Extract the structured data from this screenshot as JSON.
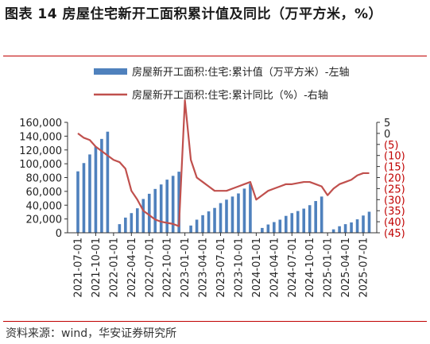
{
  "title": "图表 14 房屋住宅新开工面积累计值及同比（万平方米，%）",
  "source": "资料来源：wind，华安证券研究所",
  "colors": {
    "bar": "#4f81bd",
    "line": "#c0504d",
    "rule": "#c00000",
    "right_axis": "#c00000"
  },
  "chart_data": {
    "type": "bar",
    "title": "图表 14 房屋住宅新开工面积累计值及同比（万平方米，%）",
    "x": [
      "2021-07",
      "2021-08",
      "2021-09",
      "2021-10",
      "2021-11",
      "2021-12",
      "2022-01",
      "2022-02",
      "2022-03",
      "2022-04",
      "2022-05",
      "2022-06",
      "2022-07",
      "2022-08",
      "2022-09",
      "2022-10",
      "2022-11",
      "2022-12",
      "2023-01",
      "2023-02",
      "2023-03",
      "2023-04",
      "2023-05",
      "2023-06",
      "2023-07",
      "2023-08",
      "2023-09",
      "2023-10",
      "2023-11",
      "2023-12",
      "2024-01",
      "2024-02",
      "2024-03",
      "2024-04",
      "2024-05",
      "2024-06",
      "2024-07",
      "2024-08",
      "2024-09",
      "2024-10",
      "2024-11",
      "2024-12",
      "2025-01",
      "2025-02",
      "2025-03",
      "2025-04",
      "2025-05",
      "2025-06",
      "2025-07",
      "2025-08"
    ],
    "x_tick_labels": [
      "2021-07-01",
      "2021-10-01",
      "2022-01-01",
      "2022-04-01",
      "2022-07-01",
      "2022-10-01",
      "2023-01-01",
      "2023-04-01",
      "2023-07-01",
      "2023-10-01",
      "2024-01-01",
      "2024-04-01",
      "2024-07-01",
      "2024-10-01",
      "2025-01-01",
      "2025-04-01",
      "2025-07-01"
    ],
    "series": [
      {
        "name": "房屋新开工面积:住宅:累计值（万平方米）-左轴",
        "type": "bar",
        "axis": "left",
        "values": [
          89000,
          101000,
          113500,
          125000,
          136000,
          146500,
          null,
          12500,
          22000,
          28500,
          35500,
          49000,
          56500,
          63500,
          70000,
          77000,
          82500,
          88500,
          null,
          10500,
          19000,
          25500,
          31000,
          36000,
          43000,
          48000,
          52500,
          57000,
          64000,
          71000,
          null,
          7000,
          12000,
          15500,
          19000,
          24500,
          28500,
          31500,
          35000,
          40000,
          46000,
          52500,
          null,
          5000,
          9500,
          12500,
          15000,
          19500,
          25000,
          30500
        ]
      },
      {
        "name": "房屋新开工面积:住宅:累计同比（%）-右轴",
        "type": "line",
        "axis": "right",
        "values": [
          0,
          -2,
          -3,
          -6,
          -8,
          -10,
          -12,
          -13,
          -16,
          -26,
          -30,
          -35,
          -37,
          -39,
          -40,
          -40.5,
          -41,
          -42,
          15,
          -12,
          -20,
          -22,
          -24,
          -26,
          -26,
          -26,
          -25,
          -24,
          -23,
          -22,
          -30,
          -28,
          -26,
          -25,
          -24,
          -23,
          -23,
          -22.5,
          -22,
          -22,
          -23,
          -24,
          -28,
          -25,
          -23,
          -22,
          -21,
          -19,
          -18,
          -18
        ]
      }
    ],
    "left_axis": {
      "min": 0,
      "max": 160000,
      "ticks": [
        "0",
        "20,000",
        "40,000",
        "60,000",
        "80,000",
        "100,000",
        "120,000",
        "140,000",
        "160,000"
      ]
    },
    "right_axis": {
      "min": -45,
      "max": 5,
      "ticks": [
        "5",
        "0",
        "(5)",
        "(10)",
        "(15)",
        "(20)",
        "(25)",
        "(30)",
        "(35)",
        "(40)",
        "(45)"
      ]
    },
    "grid": false,
    "legend_placement": "top"
  }
}
